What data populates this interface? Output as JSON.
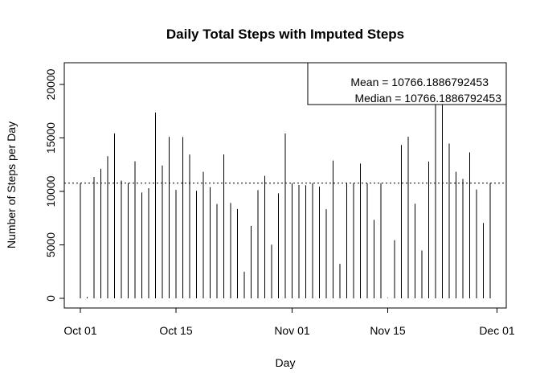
{
  "chart_data": {
    "type": "bar",
    "title": "Daily Total Steps with  Imputed Steps",
    "xlabel": "Day",
    "ylabel": "Number of Steps per Day",
    "ylim": [
      0,
      22000
    ],
    "x_ticks": [
      "Oct 01",
      "Oct 15",
      "Nov 01",
      "Nov 15",
      "Dec 01"
    ],
    "x_tick_days": [
      0,
      14,
      31,
      45,
      61
    ],
    "y_ticks": [
      0,
      5000,
      10000,
      15000,
      20000
    ],
    "reference_line": {
      "label": "mean",
      "value": 10766.1886792453,
      "style": "dotted"
    },
    "legend": {
      "position": "top-right",
      "entries": [
        "Mean = 10766.1886792453",
        "Median = 10766.1886792453"
      ]
    },
    "series": [
      {
        "name": "Daily total steps",
        "x_days": [
          0,
          1,
          2,
          3,
          4,
          5,
          6,
          7,
          8,
          9,
          10,
          11,
          12,
          13,
          14,
          15,
          16,
          17,
          18,
          19,
          20,
          21,
          22,
          23,
          24,
          25,
          26,
          27,
          28,
          29,
          30,
          31,
          32,
          33,
          34,
          35,
          36,
          37,
          38,
          39,
          40,
          41,
          42,
          43,
          44,
          45,
          46,
          47,
          48,
          49,
          50,
          51,
          52,
          53,
          54,
          55,
          56,
          57,
          58,
          59,
          60
        ],
        "values": [
          10766,
          126,
          11352,
          12116,
          13294,
          15420,
          11015,
          10766,
          12811,
          9900,
          10304,
          17382,
          12426,
          15098,
          10139,
          15084,
          13452,
          10056,
          11829,
          10395,
          8821,
          13460,
          8918,
          8355,
          2492,
          6778,
          10119,
          11458,
          5018,
          9819,
          15414,
          10766,
          10600,
          10571,
          10766,
          10439,
          8334,
          12883,
          3219,
          10766,
          10766,
          12608,
          10765,
          7336,
          10766,
          41,
          5441,
          14339,
          15110,
          8841,
          4472,
          12787,
          20427,
          21194,
          14478,
          11834,
          11162,
          13646,
          10183,
          7047,
          10766
        ]
      }
    ]
  }
}
